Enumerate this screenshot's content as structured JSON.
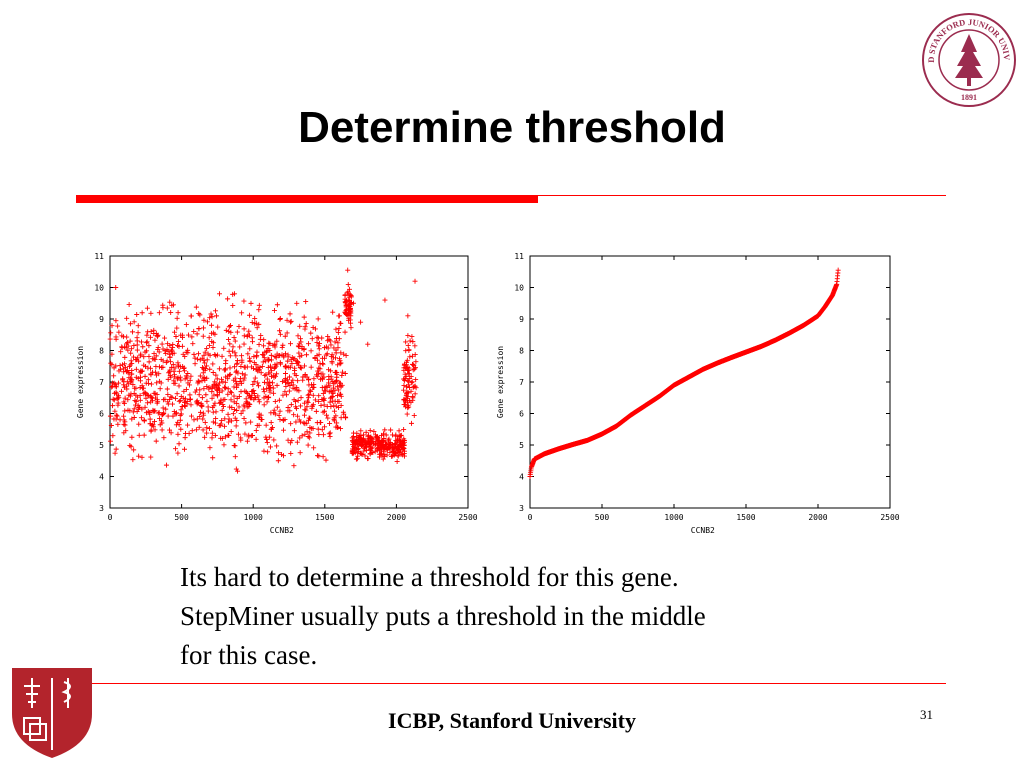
{
  "slide": {
    "title": "Determine threshold",
    "caption_lines": [
      "Its hard to determine a threshold for this gene.",
      "StepMiner usually puts a threshold in the middle",
      "for this case."
    ],
    "footer": "ICBP, Stanford University",
    "page_number": "31",
    "seal_text": "LELAND STANFORD JUNIOR UNIVERSITY",
    "seal_year": "1891"
  },
  "colors": {
    "accent": "#ff0000",
    "marker": "#ff0000",
    "seal": "#9b2c4f",
    "shield": "#b3242c"
  },
  "chart_data": [
    {
      "type": "scatter",
      "title": "",
      "xlabel": "CCNB2",
      "ylabel": "Gene expression",
      "xlim": [
        0,
        2500
      ],
      "ylim": [
        3,
        11
      ],
      "xticks": [
        "0",
        "500",
        "1000",
        "1500",
        "2000",
        "2500"
      ],
      "yticks": [
        "3",
        "4",
        "5",
        "6",
        "7",
        "8",
        "9",
        "10",
        "11"
      ],
      "marker": "+",
      "grid": false,
      "series": [
        {
          "description": "unsorted samples",
          "x_range": [
            0,
            2140
          ],
          "segments": [
            {
              "x": [
                0,
                1650
              ],
              "y_center": 7.0,
              "y_spread": 1.9,
              "y_min": 4.0,
              "y_max": 9.8
            },
            {
              "x": [
                1640,
                1690
              ],
              "y_center": 9.4,
              "y_spread": 0.5,
              "y_min": 8.6,
              "y_max": 10.6
            },
            {
              "x": [
                1690,
                2060
              ],
              "y_center": 5.0,
              "y_spread": 0.35,
              "y_min": 4.2,
              "y_max": 6.0
            },
            {
              "x": [
                2050,
                2140
              ],
              "y_center": 7.2,
              "y_spread": 1.0,
              "y_min": 5.5,
              "y_max": 8.6
            }
          ],
          "outliers": [
            [
              2130,
              10.2
            ],
            [
              1660,
              10.55
            ],
            [
              40,
              10.0
            ],
            [
              1700,
              9.5
            ],
            [
              1750,
              8.9
            ],
            [
              2080,
              9.1
            ],
            [
              1920,
              9.6
            ],
            [
              1800,
              8.2
            ]
          ]
        }
      ]
    },
    {
      "type": "scatter",
      "title": "",
      "xlabel": "CCNB2",
      "ylabel": "Gene expression",
      "xlim": [
        0,
        2500
      ],
      "ylim": [
        3,
        11
      ],
      "xticks": [
        "0",
        "500",
        "1000",
        "1500",
        "2000",
        "2500"
      ],
      "yticks": [
        "3",
        "4",
        "5",
        "6",
        "7",
        "8",
        "9",
        "10",
        "11"
      ],
      "marker": "+",
      "grid": false,
      "series": [
        {
          "description": "sorted samples",
          "curve": [
            [
              0,
              4.0
            ],
            [
              10,
              4.3
            ],
            [
              30,
              4.55
            ],
            [
              100,
              4.72
            ],
            [
              200,
              4.88
            ],
            [
              300,
              5.02
            ],
            [
              400,
              5.15
            ],
            [
              500,
              5.35
            ],
            [
              600,
              5.6
            ],
            [
              700,
              5.95
            ],
            [
              800,
              6.25
            ],
            [
              900,
              6.55
            ],
            [
              1000,
              6.9
            ],
            [
              1100,
              7.15
            ],
            [
              1200,
              7.4
            ],
            [
              1300,
              7.6
            ],
            [
              1400,
              7.78
            ],
            [
              1500,
              7.95
            ],
            [
              1600,
              8.12
            ],
            [
              1700,
              8.32
            ],
            [
              1800,
              8.55
            ],
            [
              1900,
              8.8
            ],
            [
              2000,
              9.1
            ],
            [
              2050,
              9.4
            ],
            [
              2100,
              9.75
            ],
            [
              2130,
              10.1
            ],
            [
              2140,
              10.55
            ]
          ]
        }
      ]
    }
  ]
}
